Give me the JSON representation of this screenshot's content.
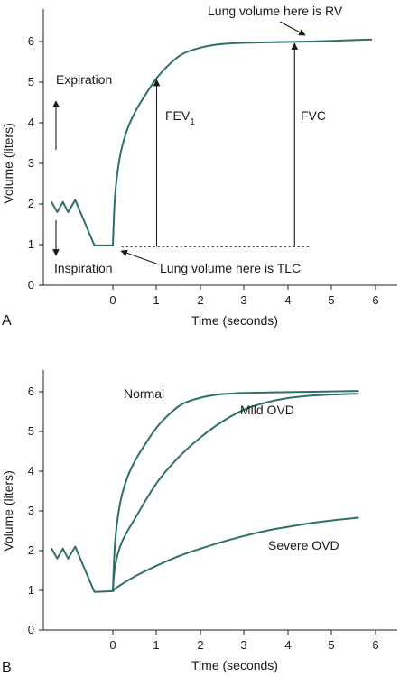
{
  "colors": {
    "curve": "#2f6f6a",
    "ink": "#1a1a1a",
    "background": "#ffffff"
  },
  "chart_data": [
    {
      "panel_label": "A",
      "type": "line",
      "xlabel": "Time (seconds)",
      "ylabel": "Volume (liters)",
      "xlim": [
        0,
        6
      ],
      "ylim": [
        0,
        6
      ],
      "xticks": [
        "0",
        "1",
        "2",
        "3",
        "4",
        "5",
        "6"
      ],
      "yticks": [
        "0",
        "1",
        "2",
        "3",
        "4",
        "5",
        "6"
      ],
      "pre_test_trace": [
        [
          -1.4,
          2.05
        ],
        [
          -1.27,
          1.8
        ],
        [
          -1.14,
          2.05
        ],
        [
          -1.02,
          1.8
        ],
        [
          -0.86,
          2.1
        ],
        [
          -0.42,
          0.98
        ],
        [
          0.0,
          0.98
        ]
      ],
      "series": [
        {
          "x": [
            0,
            0.05,
            0.15,
            0.3,
            0.5,
            0.75,
            1.0,
            1.3,
            1.6,
            2.0,
            2.4,
            2.8,
            3.5,
            4.5,
            5.9
          ],
          "y": [
            0.98,
            2.2,
            3.1,
            3.75,
            4.25,
            4.7,
            5.1,
            5.45,
            5.7,
            5.85,
            5.93,
            5.96,
            5.98,
            6.0,
            6.05
          ]
        }
      ],
      "markers": [
        {
          "label": "FEV1",
          "x": 1.0,
          "y_from": 0.95,
          "y_to": 5.1
        },
        {
          "label": "FVC",
          "x": 4.15,
          "y_from": 0.95,
          "y_to": 6.0
        }
      ],
      "baseline": {
        "y": 0.95,
        "x_from": 0.2,
        "x_to": 4.5
      },
      "annotations": {
        "expiration": "Expiration",
        "inspiration": "Inspiration",
        "fev1_main": "FEV",
        "fev1_sub": "1",
        "fvc": "FVC",
        "rv_note": "Lung volume here is RV",
        "tlc_note": "Lung volume here is TLC"
      }
    },
    {
      "panel_label": "B",
      "type": "line",
      "xlabel": "Time (seconds)",
      "ylabel": "Volume (liters)",
      "xlim": [
        0,
        6
      ],
      "ylim": [
        0,
        6
      ],
      "xticks": [
        "0",
        "1",
        "2",
        "3",
        "4",
        "5",
        "6"
      ],
      "yticks": [
        "0",
        "1",
        "2",
        "3",
        "4",
        "5",
        "6"
      ],
      "pre_test_trace": [
        [
          -1.4,
          2.05
        ],
        [
          -1.27,
          1.8
        ],
        [
          -1.14,
          2.05
        ],
        [
          -1.02,
          1.8
        ],
        [
          -0.86,
          2.1
        ],
        [
          -0.42,
          0.96
        ],
        [
          0.0,
          0.98
        ]
      ],
      "series": [
        {
          "name": "Normal",
          "x": [
            0,
            0.05,
            0.15,
            0.3,
            0.5,
            0.75,
            1.0,
            1.3,
            1.6,
            2.0,
            2.4,
            3.0,
            4.0,
            5.6
          ],
          "y": [
            0.98,
            2.2,
            3.1,
            3.75,
            4.25,
            4.7,
            5.1,
            5.45,
            5.7,
            5.85,
            5.93,
            5.97,
            5.99,
            6.02
          ]
        },
        {
          "name": "Mild OVD",
          "x": [
            0,
            0.05,
            0.2,
            0.5,
            1.0,
            1.5,
            2.0,
            2.5,
            3.0,
            3.5,
            4.0,
            4.5,
            5.0,
            5.6
          ],
          "y": [
            0.98,
            1.6,
            2.2,
            2.8,
            3.7,
            4.35,
            4.85,
            5.25,
            5.55,
            5.73,
            5.84,
            5.9,
            5.93,
            5.95
          ]
        },
        {
          "name": "Severe OVD",
          "x": [
            0,
            0.1,
            0.5,
            1.0,
            1.5,
            2.0,
            2.5,
            3.0,
            3.5,
            4.0,
            4.5,
            5.0,
            5.6
          ],
          "y": [
            0.98,
            1.08,
            1.35,
            1.62,
            1.86,
            2.05,
            2.22,
            2.37,
            2.5,
            2.6,
            2.69,
            2.76,
            2.83
          ]
        }
      ]
    }
  ]
}
